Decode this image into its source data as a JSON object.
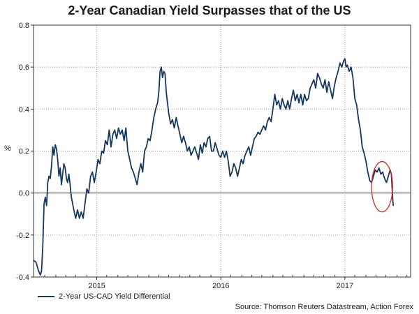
{
  "chart_data": {
    "type": "line",
    "title": "2-Year Canadian Yield Surpasses that of the US",
    "ylabel": "%",
    "xlabel": "",
    "ylim": [
      -0.4,
      0.8
    ],
    "yticks": [
      "0.8",
      "0.6",
      "0.4",
      "0.2",
      "0.0",
      "-0.2",
      "-0.4"
    ],
    "ytick_values": [
      0.8,
      0.6,
      0.4,
      0.2,
      0.0,
      -0.2,
      -0.4
    ],
    "xlim": [
      2014.49,
      2017.53
    ],
    "xticks": [
      {
        "label": "2015",
        "value": 2015.0
      },
      {
        "label": "2016",
        "value": 2016.0
      },
      {
        "label": "2017",
        "value": 2017.0
      }
    ],
    "x_gridlines": [
      2015.0,
      2016.0,
      2017.0
    ],
    "minor_x_ticks": [
      2014.58,
      2014.67,
      2014.75,
      2014.83,
      2014.92,
      2015.08,
      2015.17,
      2015.25,
      2015.33,
      2015.42,
      2015.5,
      2015.58,
      2015.67,
      2015.75,
      2015.83,
      2015.92,
      2016.08,
      2016.17,
      2016.25,
      2016.33,
      2016.42,
      2016.5,
      2016.58,
      2016.67,
      2016.75,
      2016.83,
      2016.92,
      2017.08,
      2017.17,
      2017.25,
      2017.33,
      2017.42,
      2017.5
    ],
    "zero_line": 0.0,
    "grid": true,
    "legend_position": "bottom-left",
    "series": [
      {
        "name": "2-Year US-CAD Yield Differential",
        "color": "#16375f",
        "points": [
          [
            2014.49,
            -0.32
          ],
          [
            2014.51,
            -0.33
          ],
          [
            2014.53,
            -0.37
          ],
          [
            2014.545,
            -0.39
          ],
          [
            2014.555,
            -0.37
          ],
          [
            2014.565,
            -0.25
          ],
          [
            2014.575,
            -0.05
          ],
          [
            2014.585,
            -0.02
          ],
          [
            2014.595,
            -0.06
          ],
          [
            2014.605,
            0.05
          ],
          [
            2014.615,
            0.08
          ],
          [
            2014.625,
            0.07
          ],
          [
            2014.635,
            0.13
          ],
          [
            2014.645,
            0.22
          ],
          [
            2014.655,
            0.18
          ],
          [
            2014.665,
            0.23
          ],
          [
            2014.675,
            0.21
          ],
          [
            2014.685,
            0.16
          ],
          [
            2014.695,
            0.08
          ],
          [
            2014.705,
            0.12
          ],
          [
            2014.715,
            0.04
          ],
          [
            2014.725,
            0.09
          ],
          [
            2014.735,
            0.14
          ],
          [
            2014.745,
            0.12
          ],
          [
            2014.755,
            0.07
          ],
          [
            2014.765,
            0.05
          ],
          [
            2014.775,
            0.09
          ],
          [
            2014.785,
            0.04
          ],
          [
            2014.795,
            -0.02
          ],
          [
            2014.805,
            -0.05
          ],
          [
            2014.815,
            -0.08
          ],
          [
            2014.83,
            -0.12
          ],
          [
            2014.845,
            -0.08
          ],
          [
            2014.86,
            -0.12
          ],
          [
            2014.875,
            -0.09
          ],
          [
            2014.89,
            -0.12
          ],
          [
            2014.905,
            -0.05
          ],
          [
            2014.92,
            0.02
          ],
          [
            2014.935,
            0.0
          ],
          [
            2014.95,
            0.08
          ],
          [
            2014.965,
            0.1
          ],
          [
            2014.98,
            0.05
          ],
          [
            2014.995,
            0.1
          ],
          [
            2015.01,
            0.16
          ],
          [
            2015.025,
            0.14
          ],
          [
            2015.04,
            0.2
          ],
          [
            2015.055,
            0.19
          ],
          [
            2015.07,
            0.25
          ],
          [
            2015.085,
            0.23
          ],
          [
            2015.1,
            0.3
          ],
          [
            2015.115,
            0.22
          ],
          [
            2015.13,
            0.28
          ],
          [
            2015.145,
            0.3
          ],
          [
            2015.16,
            0.26
          ],
          [
            2015.175,
            0.31
          ],
          [
            2015.19,
            0.28
          ],
          [
            2015.205,
            0.3
          ],
          [
            2015.22,
            0.25
          ],
          [
            2015.235,
            0.31
          ],
          [
            2015.25,
            0.2
          ],
          [
            2015.265,
            0.16
          ],
          [
            2015.28,
            0.12
          ],
          [
            2015.295,
            0.1
          ],
          [
            2015.31,
            0.07
          ],
          [
            2015.325,
            0.04
          ],
          [
            2015.34,
            0.1
          ],
          [
            2015.355,
            0.14
          ],
          [
            2015.37,
            0.1
          ],
          [
            2015.385,
            0.2
          ],
          [
            2015.4,
            0.22
          ],
          [
            2015.415,
            0.26
          ],
          [
            2015.43,
            0.25
          ],
          [
            2015.445,
            0.3
          ],
          [
            2015.46,
            0.36
          ],
          [
            2015.475,
            0.4
          ],
          [
            2015.49,
            0.43
          ],
          [
            2015.5,
            0.48
          ],
          [
            2015.51,
            0.58
          ],
          [
            2015.52,
            0.6
          ],
          [
            2015.53,
            0.55
          ],
          [
            2015.54,
            0.58
          ],
          [
            2015.55,
            0.57
          ],
          [
            2015.56,
            0.48
          ],
          [
            2015.57,
            0.43
          ],
          [
            2015.58,
            0.38
          ],
          [
            2015.595,
            0.33
          ],
          [
            2015.61,
            0.35
          ],
          [
            2015.625,
            0.31
          ],
          [
            2015.64,
            0.36
          ],
          [
            2015.655,
            0.32
          ],
          [
            2015.67,
            0.28
          ],
          [
            2015.685,
            0.24
          ],
          [
            2015.7,
            0.27
          ],
          [
            2015.715,
            0.24
          ],
          [
            2015.73,
            0.2
          ],
          [
            2015.745,
            0.22
          ],
          [
            2015.76,
            0.18
          ],
          [
            2015.775,
            0.2
          ],
          [
            2015.79,
            0.22
          ],
          [
            2015.805,
            0.19
          ],
          [
            2015.82,
            0.16
          ],
          [
            2015.835,
            0.23
          ],
          [
            2015.85,
            0.19
          ],
          [
            2015.865,
            0.24
          ],
          [
            2015.88,
            0.22
          ],
          [
            2015.895,
            0.26
          ],
          [
            2015.91,
            0.27
          ],
          [
            2015.925,
            0.2
          ],
          [
            2015.94,
            0.2
          ],
          [
            2015.955,
            0.24
          ],
          [
            2015.97,
            0.21
          ],
          [
            2015.985,
            0.18
          ],
          [
            2016.0,
            0.17
          ],
          [
            2016.015,
            0.2
          ],
          [
            2016.03,
            0.17
          ],
          [
            2016.045,
            0.2
          ],
          [
            2016.06,
            0.15
          ],
          [
            2016.075,
            0.08
          ],
          [
            2016.09,
            0.1
          ],
          [
            2016.105,
            0.14
          ],
          [
            2016.12,
            0.12
          ],
          [
            2016.135,
            0.08
          ],
          [
            2016.15,
            0.12
          ],
          [
            2016.165,
            0.16
          ],
          [
            2016.18,
            0.14
          ],
          [
            2016.195,
            0.18
          ],
          [
            2016.21,
            0.2
          ],
          [
            2016.225,
            0.22
          ],
          [
            2016.24,
            0.18
          ],
          [
            2016.255,
            0.22
          ],
          [
            2016.27,
            0.26
          ],
          [
            2016.285,
            0.27
          ],
          [
            2016.3,
            0.29
          ],
          [
            2016.315,
            0.28
          ],
          [
            2016.33,
            0.3
          ],
          [
            2016.345,
            0.32
          ],
          [
            2016.36,
            0.3
          ],
          [
            2016.375,
            0.34
          ],
          [
            2016.39,
            0.36
          ],
          [
            2016.405,
            0.34
          ],
          [
            2016.42,
            0.4
          ],
          [
            2016.435,
            0.47
          ],
          [
            2016.45,
            0.42
          ],
          [
            2016.465,
            0.44
          ],
          [
            2016.48,
            0.4
          ],
          [
            2016.495,
            0.45
          ],
          [
            2016.51,
            0.42
          ],
          [
            2016.525,
            0.4
          ],
          [
            2016.54,
            0.44
          ],
          [
            2016.555,
            0.4
          ],
          [
            2016.57,
            0.45
          ],
          [
            2016.585,
            0.49
          ],
          [
            2016.6,
            0.44
          ],
          [
            2016.615,
            0.47
          ],
          [
            2016.63,
            0.43
          ],
          [
            2016.645,
            0.47
          ],
          [
            2016.66,
            0.42
          ],
          [
            2016.675,
            0.47
          ],
          [
            2016.69,
            0.44
          ],
          [
            2016.705,
            0.45
          ],
          [
            2016.72,
            0.5
          ],
          [
            2016.735,
            0.52
          ],
          [
            2016.75,
            0.54
          ],
          [
            2016.765,
            0.5
          ],
          [
            2016.78,
            0.57
          ],
          [
            2016.795,
            0.55
          ],
          [
            2016.81,
            0.52
          ],
          [
            2016.825,
            0.5
          ],
          [
            2016.84,
            0.54
          ],
          [
            2016.855,
            0.48
          ],
          [
            2016.87,
            0.53
          ],
          [
            2016.885,
            0.49
          ],
          [
            2016.9,
            0.45
          ],
          [
            2016.915,
            0.51
          ],
          [
            2016.93,
            0.55
          ],
          [
            2016.945,
            0.58
          ],
          [
            2016.96,
            0.62
          ],
          [
            2016.975,
            0.6
          ],
          [
            2016.99,
            0.63
          ],
          [
            2017.0,
            0.64
          ],
          [
            2017.01,
            0.6
          ],
          [
            2017.02,
            0.61
          ],
          [
            2017.035,
            0.58
          ],
          [
            2017.05,
            0.6
          ],
          [
            2017.065,
            0.55
          ],
          [
            2017.08,
            0.45
          ],
          [
            2017.095,
            0.42
          ],
          [
            2017.11,
            0.35
          ],
          [
            2017.125,
            0.3
          ],
          [
            2017.14,
            0.22
          ],
          [
            2017.155,
            0.19
          ],
          [
            2017.17,
            0.15
          ],
          [
            2017.185,
            0.1
          ],
          [
            2017.2,
            0.06
          ],
          [
            2017.215,
            0.05
          ],
          [
            2017.23,
            0.08
          ],
          [
            2017.245,
            0.11
          ],
          [
            2017.26,
            0.1
          ],
          [
            2017.275,
            0.12
          ],
          [
            2017.29,
            0.09
          ],
          [
            2017.305,
            0.1
          ],
          [
            2017.32,
            0.07
          ],
          [
            2017.335,
            0.05
          ],
          [
            2017.35,
            0.08
          ],
          [
            2017.365,
            0.11
          ],
          [
            2017.375,
            0.09
          ],
          [
            2017.385,
            -0.02
          ],
          [
            2017.39,
            -0.06
          ]
        ]
      }
    ],
    "annotations": [
      {
        "type": "ellipse-highlight",
        "color": "#e0261f",
        "x_center": 2017.3,
        "y_center": 0.03,
        "x_radius": 0.085,
        "y_radius": 0.12
      }
    ],
    "legend_label": "2-Year US-CAD Yield Differential",
    "source_text": "Source: Thomson Reuters Datastream, Action Forex",
    "colors": {
      "line": "#16375f",
      "grid": "#9a9a9a",
      "axis": "#333333",
      "highlight": "#e0261f"
    }
  }
}
